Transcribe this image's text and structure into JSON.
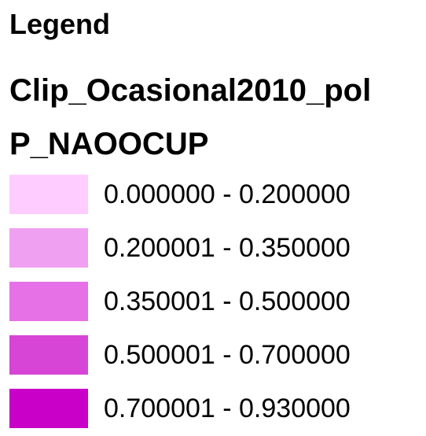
{
  "legend": {
    "heading": "Legend",
    "layer_name": "Clip_Ocasional2010_pol",
    "field_name": "P_NAOOCUP",
    "classes": [
      {
        "label": "0.000000 - 0.200000",
        "color": "#ffccff"
      },
      {
        "label": "0.200001 - 0.350000",
        "color": "#f0a0f0"
      },
      {
        "label": "0.350001 - 0.500000",
        "color": "#e670e6"
      },
      {
        "label": "0.500001 - 0.700000",
        "color": "#d645d6"
      },
      {
        "label": "0.700001 - 0.930000",
        "color": "#c800c8"
      }
    ]
  }
}
